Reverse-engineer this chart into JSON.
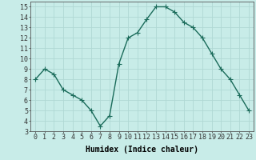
{
  "x": [
    0,
    1,
    2,
    3,
    4,
    5,
    6,
    7,
    8,
    9,
    10,
    11,
    12,
    13,
    14,
    15,
    16,
    17,
    18,
    19,
    20,
    21,
    22,
    23
  ],
  "y": [
    8,
    9,
    8.5,
    7,
    6.5,
    6,
    5,
    3.5,
    4.5,
    9.5,
    12,
    12.5,
    13.8,
    15,
    15,
    14.5,
    13.5,
    13,
    12,
    10.5,
    9,
    8,
    6.5,
    5
  ],
  "line_color": "#1a6b5a",
  "marker": "+",
  "marker_size": 4,
  "bg_color": "#c8ece8",
  "grid_color": "#b0d8d4",
  "xlabel": "Humidex (Indice chaleur)",
  "ylim": [
    3,
    15.5
  ],
  "xlim": [
    -0.5,
    23.5
  ],
  "yticks": [
    3,
    4,
    5,
    6,
    7,
    8,
    9,
    10,
    11,
    12,
    13,
    14,
    15
  ],
  "xticks": [
    0,
    1,
    2,
    3,
    4,
    5,
    6,
    7,
    8,
    9,
    10,
    11,
    12,
    13,
    14,
    15,
    16,
    17,
    18,
    19,
    20,
    21,
    22,
    23
  ],
  "xtick_labels": [
    "0",
    "1",
    "2",
    "3",
    "4",
    "5",
    "6",
    "7",
    "8",
    "9",
    "10",
    "11",
    "12",
    "13",
    "14",
    "15",
    "16",
    "17",
    "18",
    "19",
    "20",
    "21",
    "22",
    "23"
  ],
  "xlabel_fontsize": 7,
  "tick_fontsize": 6,
  "line_width": 1.0
}
